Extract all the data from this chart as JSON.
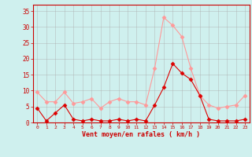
{
  "x": [
    0,
    1,
    2,
    3,
    4,
    5,
    6,
    7,
    8,
    9,
    10,
    11,
    12,
    13,
    14,
    15,
    16,
    17,
    18,
    19,
    20,
    21,
    22,
    23
  ],
  "rafales": [
    9.5,
    6.5,
    6.5,
    9.5,
    6.0,
    6.5,
    7.5,
    4.5,
    6.5,
    7.5,
    6.5,
    6.5,
    5.5,
    17.0,
    33.0,
    30.5,
    27.0,
    17.0,
    8.5,
    5.5,
    4.5,
    5.0,
    5.5,
    8.5
  ],
  "moyen": [
    4.5,
    0.5,
    3.0,
    5.5,
    1.0,
    0.5,
    1.0,
    0.5,
    0.5,
    1.0,
    0.5,
    1.0,
    0.5,
    5.5,
    11.0,
    18.5,
    15.5,
    13.5,
    8.5,
    1.0,
    0.5,
    0.5,
    0.5,
    1.0
  ],
  "bg_color": "#cff0ee",
  "line_color_rafales": "#ff9999",
  "line_color_moyen": "#dd0000",
  "grid_color": "#aaaaaa",
  "xlabel": "Vent moyen/en rafales ( km/h )",
  "xlabel_color": "#cc0000",
  "tick_color": "#cc0000",
  "spine_color": "#cc0000",
  "ytick_labels": [
    0,
    5,
    10,
    15,
    20,
    25,
    30,
    35
  ],
  "ylim": [
    0,
    37
  ],
  "xlim": [
    -0.5,
    23.5
  ]
}
